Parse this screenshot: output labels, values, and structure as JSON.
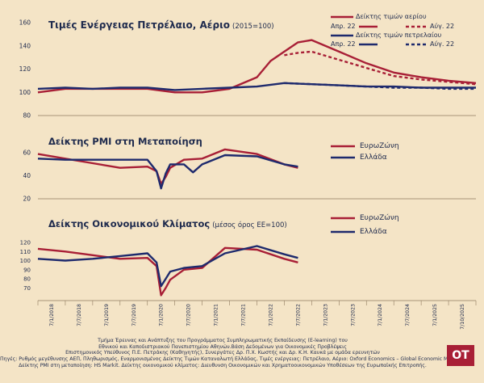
{
  "colors": {
    "background": "#f4e4c6",
    "eurozone_red": "#a81f36",
    "greece_navy": "#1e2a6d",
    "axis": "#8f7a5e",
    "text": "#1e2a4d"
  },
  "energy_panel": {
    "title": "Τιμές Ενέργειας Πετρέλαιο, Αέριο",
    "subtitle": "(2015=100)",
    "legend": {
      "gas_label": "Δείκτης τιμών αερίου",
      "oil_label": "Δείκτης τιμών πετρελαίου",
      "actual_label": "Απρ. 22",
      "forecast_label": "Αύγ. 22"
    }
  },
  "pmi_panel": {
    "title": "Δείκτης PMI στη Μεταποίηση",
    "legend": {
      "eurozone": "ΕυρωΖώνη",
      "greece": "Ελλάδα"
    }
  },
  "climate_panel": {
    "title": "Δείκτης Οικονομικού Κλίματος",
    "subtitle": "(μέσος όρος ΕΕ=100)",
    "legend": {
      "eurozone": "ΕυρωΖώνη",
      "greece": "Ελλάδα"
    }
  },
  "sources": [
    "Τμήμα Έρευνας και Ανάπτυξης του Προγράμματος Συμπληρωματικής Εκπαίδευσης (E-learning) του",
    "Εθνικού και Καποδιστριακού Πανεπιστημίου Αθηνών.Βάση Δεδομένων για Οικονομικές Προβλέψεις",
    "Επιστημονικός Υπεύθυνος Π.Ε. Πετράκης (Καθηγητής), Συνεργάτες Δρ. Π.Χ. Κωστής και Δρ. Κ.Η. Καυκά με ομάδα ερευνητών",
    "Πηγές: Ρυθμός μεγέθυνσης ΑΕΠ, Πληθωρισμός, Εναρμονισμένος Δείκτης Τιμών Καταναλωτή Ελλάδας, Τιμές ενέργειας: Πετρέλαιο, Αέριο: Oxford Economics – Global Economic Model.",
    "Δείκτης PMI στη μεταποίηση: HS Markit. Δείκτης οικονομικού κλίματος: Διευθυνση Οικονομικών και Χρηματοοικονομικών Υποθέσεων της Ευρωπαϊκής Επιτροπής."
  ],
  "logo_text": "OT",
  "chart_data": [
    {
      "type": "line",
      "title": "Τιμές Ενέργειας Πετρέλαιο, Αέριο (2015=100)",
      "y_ticks": [
        80,
        100,
        120,
        140,
        160
      ],
      "ylim": [
        80,
        160
      ],
      "series": [
        {
          "name": "Δείκτης τιμών αερίου – Απρ. 22",
          "color": "#a81f36",
          "dash": false,
          "x": [
            "2018-01",
            "2018-07",
            "2019-01",
            "2019-07",
            "2020-01",
            "2020-07",
            "2021-01",
            "2021-07",
            "2022-01",
            "2022-04",
            "2022-07",
            "2022-10",
            "2023-01",
            "2023-07",
            "2024-01",
            "2024-07",
            "2025-01",
            "2025-07",
            "2026-01"
          ],
          "values": [
            100,
            103,
            103,
            103,
            103,
            100,
            100,
            103,
            113,
            127,
            135,
            143,
            145,
            135,
            125,
            117,
            113,
            110,
            108
          ]
        },
        {
          "name": "Δείκτης τιμών αερίου – Αύγ. 22",
          "color": "#a81f36",
          "dash": true,
          "x": [
            "2022-07",
            "2022-10",
            "2023-01",
            "2023-07",
            "2024-01",
            "2024-07",
            "2025-01",
            "2025-07",
            "2026-01"
          ],
          "values": [
            132,
            134,
            135,
            128,
            121,
            114,
            111,
            109,
            107
          ]
        },
        {
          "name": "Δείκτης τιμών πετρελαίου – Απρ. 22",
          "color": "#1e2a6d",
          "dash": false,
          "x": [
            "2018-01",
            "2018-07",
            "2019-01",
            "2019-07",
            "2020-01",
            "2020-07",
            "2021-01",
            "2021-07",
            "2022-01",
            "2022-07",
            "2023-01",
            "2023-07",
            "2024-01",
            "2024-07",
            "2025-01",
            "2025-07",
            "2026-01"
          ],
          "values": [
            103,
            104,
            103,
            104,
            104,
            102,
            103,
            104,
            105,
            108,
            107,
            106,
            105,
            105,
            104,
            104,
            104
          ]
        },
        {
          "name": "Δείκτης τιμών πετρελαίου – Αύγ. 22",
          "color": "#1e2a6d",
          "dash": true,
          "x": [
            "2022-07",
            "2023-01",
            "2023-07",
            "2024-01",
            "2024-07",
            "2025-01",
            "2025-07",
            "2026-01"
          ],
          "values": [
            108,
            107,
            106,
            105,
            104,
            104,
            103,
            103
          ]
        }
      ]
    },
    {
      "type": "line",
      "title": "Δείκτης PMI στη Μεταποίηση",
      "y_ticks": [
        20,
        40,
        60
      ],
      "ylim": [
        20,
        70
      ],
      "series": [
        {
          "name": "ΕυρωΖώνη",
          "color": "#a81f36",
          "x": [
            "2018-01",
            "2018-07",
            "2019-01",
            "2019-07",
            "2020-01",
            "2020-03",
            "2020-04",
            "2020-05",
            "2020-06",
            "2020-09",
            "2021-01",
            "2021-06",
            "2022-01",
            "2022-07",
            "2022-10"
          ],
          "values": [
            59,
            55,
            51,
            47,
            48,
            44,
            33,
            39,
            47,
            54,
            55,
            63,
            59,
            50,
            47
          ]
        },
        {
          "name": "Ελλάδα",
          "color": "#1e2a6d",
          "x": [
            "2018-01",
            "2018-07",
            "2019-01",
            "2019-07",
            "2020-01",
            "2020-03",
            "2020-04",
            "2020-05",
            "2020-06",
            "2020-09",
            "2020-11",
            "2021-01",
            "2021-06",
            "2022-01",
            "2022-07",
            "2022-10"
          ],
          "values": [
            55,
            54,
            54,
            54,
            54,
            44,
            29,
            42,
            50,
            50,
            43,
            50,
            58,
            57,
            50,
            48
          ]
        }
      ]
    },
    {
      "type": "line",
      "title": "Δείκτης Οικονομικού Κλίματος (μέσος όρος ΕΕ=100)",
      "y_ticks": [
        70,
        80,
        90,
        100,
        110,
        120
      ],
      "ylim": [
        60,
        120
      ],
      "series": [
        {
          "name": "ΕυρωΖώνη",
          "color": "#a81f36",
          "x": [
            "2018-01",
            "2018-07",
            "2019-01",
            "2019-07",
            "2020-01",
            "2020-03",
            "2020-04",
            "2020-05",
            "2020-06",
            "2020-09",
            "2021-01",
            "2021-06",
            "2022-01",
            "2022-07",
            "2022-10"
          ],
          "values": [
            113,
            110,
            106,
            102,
            103,
            94,
            62,
            70,
            79,
            90,
            92,
            114,
            112,
            102,
            98
          ]
        },
        {
          "name": "Ελλάδα",
          "color": "#1e2a6d",
          "x": [
            "2018-01",
            "2018-07",
            "2019-01",
            "2019-07",
            "2020-01",
            "2020-03",
            "2020-04",
            "2020-05",
            "2020-06",
            "2020-09",
            "2021-01",
            "2021-06",
            "2022-01",
            "2022-07",
            "2022-10"
          ],
          "values": [
            102,
            100,
            102,
            105,
            108,
            98,
            72,
            80,
            88,
            92,
            94,
            108,
            116,
            107,
            103
          ]
        }
      ]
    }
  ],
  "x_axis": {
    "tick_labels": [
      "7/1/2018",
      "7/7/2018",
      "7/1/2019",
      "7/7/2019",
      "7/1/2020",
      "7/7/2020",
      "7/1/2021",
      "7/7/2021",
      "7/1/2022",
      "7/7/2022",
      "7/1/2023",
      "7/7/2023",
      "7/1/2024",
      "7/7/2024",
      "7/1/2025",
      "7/10/2025"
    ],
    "range": [
      "2018-01",
      "2026-01"
    ]
  }
}
